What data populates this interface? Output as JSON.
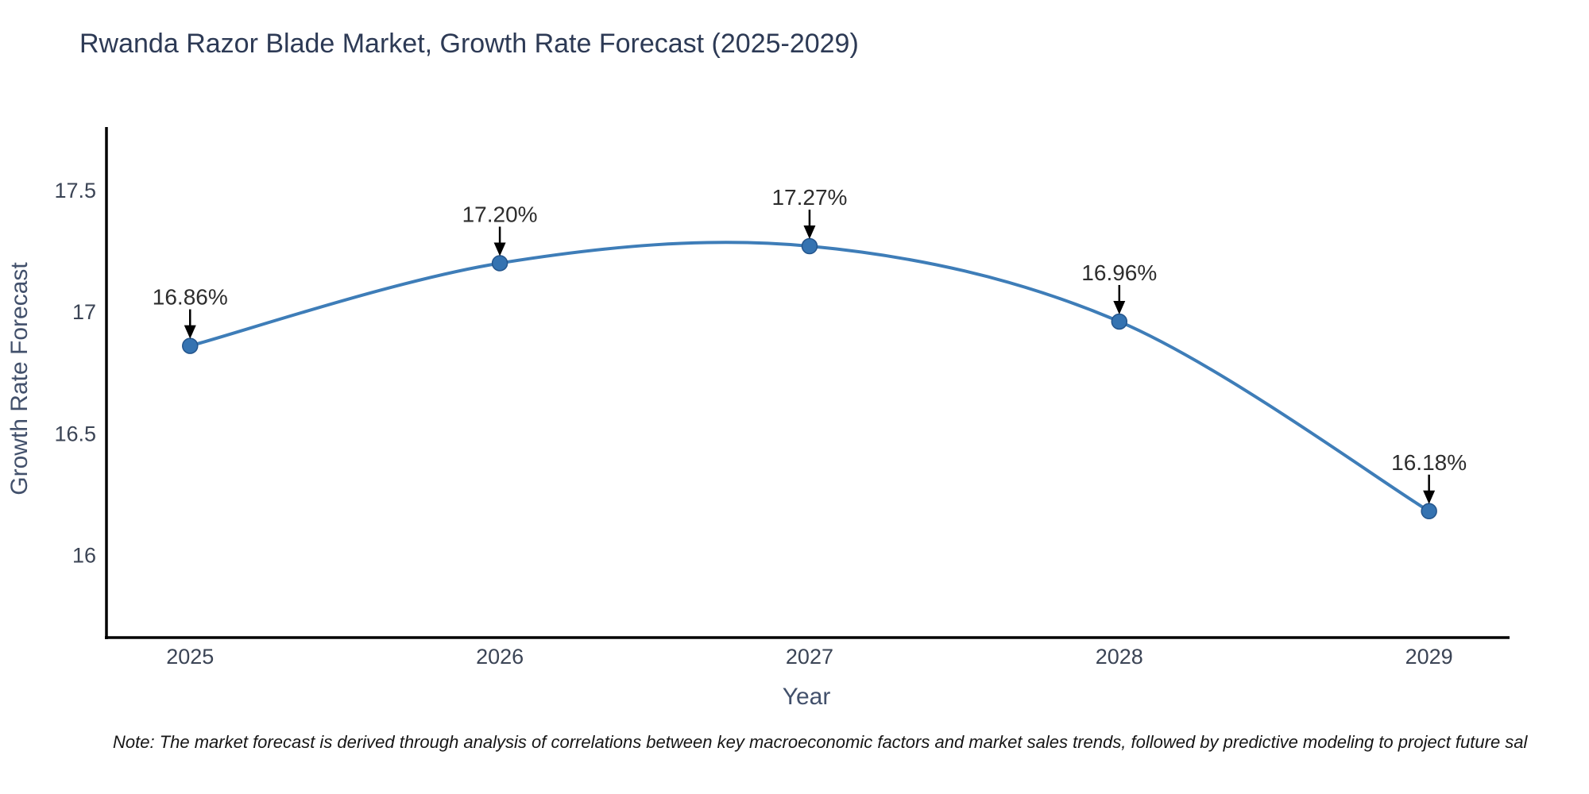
{
  "title": "Rwanda Razor Blade Market, Growth Rate Forecast (2025-2029)",
  "footnote": "Note: The market forecast is derived through analysis of correlations between key macroeconomic factors and market sales trends, followed by predictive modeling to project future sal",
  "chart_data": {
    "type": "line",
    "title": "Rwanda Razor Blade Market, Growth Rate Forecast (2025-2029)",
    "xlabel": "Year",
    "ylabel": "Growth Rate Forecast",
    "x": [
      2025,
      2026,
      2027,
      2028,
      2029
    ],
    "categories": [
      "2025",
      "2026",
      "2027",
      "2028",
      "2029"
    ],
    "values": [
      16.86,
      17.2,
      17.27,
      16.96,
      16.18
    ],
    "point_labels": [
      "16.86%",
      "17.20%",
      "17.27%",
      "16.96%",
      "16.18%"
    ],
    "yticks": [
      17.5,
      17.0,
      16.5,
      16.0
    ],
    "ytick_labels": [
      "17.5",
      "17",
      "16.5",
      "16"
    ],
    "ylim": [
      15.66,
      17.76
    ],
    "xlim": [
      2024.73,
      2029.26
    ],
    "grid": false,
    "legend": "none",
    "line_color": "#3e7db8",
    "marker_color": "#3573b1",
    "marker_edge_color": "#24558c",
    "spine_color": "#000000",
    "annotation_color": "#2d2d2d",
    "arrow_color": "#000000"
  }
}
